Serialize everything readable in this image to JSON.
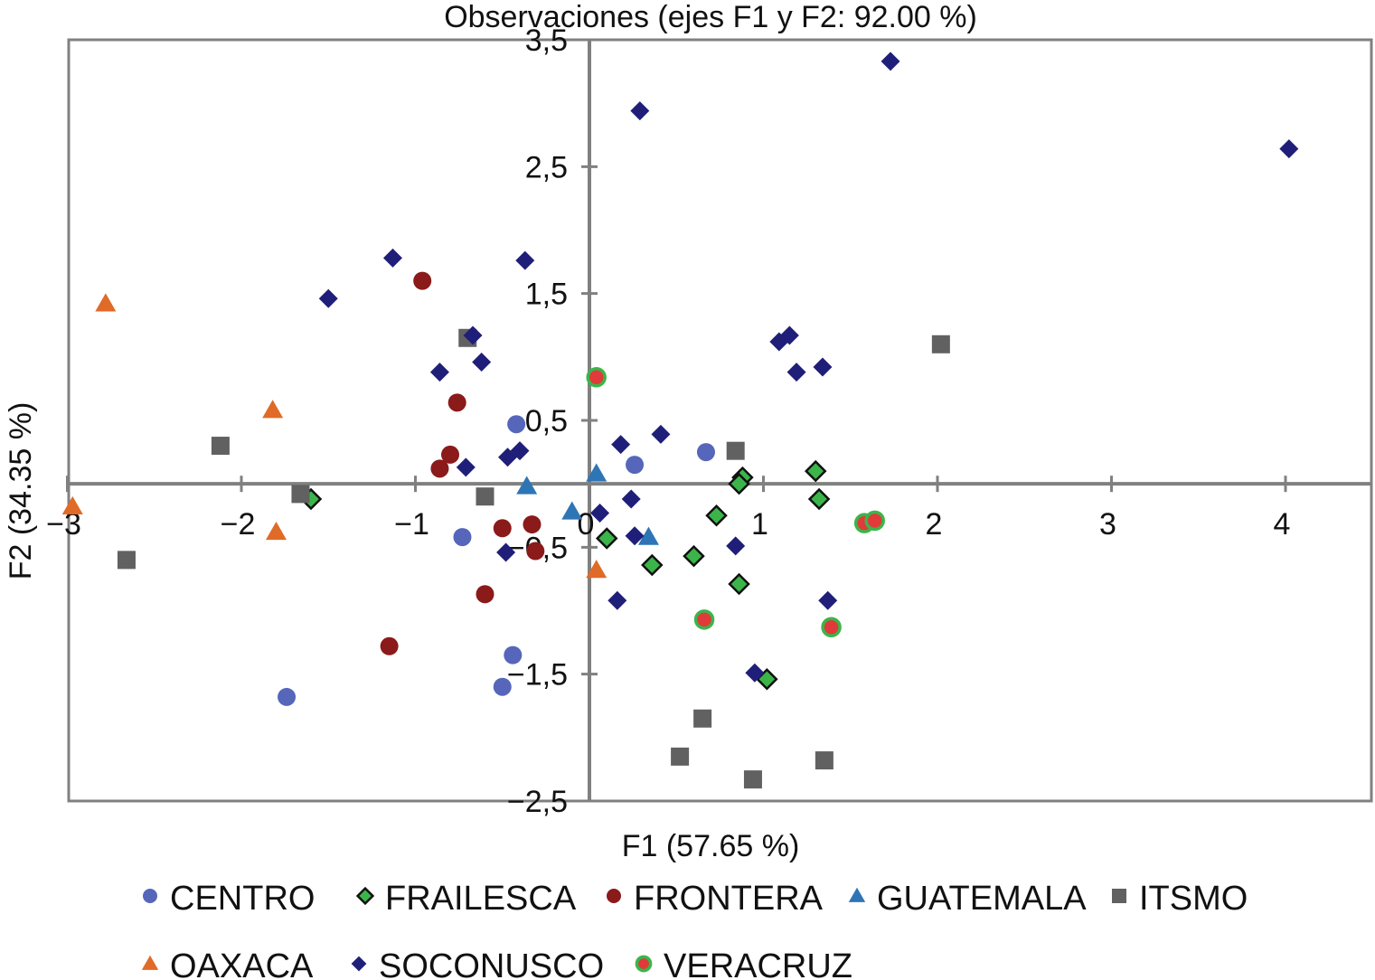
{
  "chart_data": {
    "type": "scatter",
    "title": "Observaciones (ejes F1 y F2: 92.00 %)",
    "xlabel": "F1 (57.65 %)",
    "ylabel": "F2 (34.35 %)",
    "xlim": [
      -3,
      4.5
    ],
    "ylim": [
      -2.5,
      3.5
    ],
    "x_ticks": [
      -3,
      -2,
      -1,
      0,
      1,
      2,
      3,
      4
    ],
    "x_tick_labels": [
      "−3",
      "−2",
      "−1",
      "0",
      "1",
      "2",
      "3",
      "4"
    ],
    "y_ticks": [
      3.5,
      2.5,
      1.5,
      0.5,
      -0.5,
      -1.5,
      -2.5
    ],
    "y_tick_labels": [
      "3,5",
      "2,5",
      "1,5",
      "0,5",
      "−0,5",
      "−1,5",
      "−2,5"
    ],
    "grid": false,
    "legend_position": "bottom",
    "series": [
      {
        "name": "CENTRO",
        "marker": "circle",
        "color": "#5566bb",
        "points": [
          [
            -0.42,
            0.47
          ],
          [
            0.26,
            0.15
          ],
          [
            0.67,
            0.25
          ],
          [
            -0.73,
            -0.42
          ],
          [
            -0.44,
            -1.35
          ],
          [
            -0.5,
            -1.6
          ],
          [
            -1.74,
            -1.68
          ]
        ]
      },
      {
        "name": "FRAILESCA",
        "marker": "diamond",
        "color": "#3bb54a",
        "edge_color": "#111111",
        "points": [
          [
            -1.6,
            -0.12
          ],
          [
            0.88,
            0.05
          ],
          [
            0.86,
            0.0
          ],
          [
            1.3,
            0.1
          ],
          [
            1.32,
            -0.12
          ],
          [
            0.73,
            -0.25
          ],
          [
            0.1,
            -0.43
          ],
          [
            0.36,
            -0.64
          ],
          [
            0.6,
            -0.57
          ],
          [
            0.86,
            -0.79
          ],
          [
            1.02,
            -1.54
          ]
        ]
      },
      {
        "name": "FRONTERA",
        "marker": "circle",
        "color": "#8b1a1a",
        "points": [
          [
            -0.96,
            1.6
          ],
          [
            -0.76,
            0.64
          ],
          [
            -0.8,
            0.23
          ],
          [
            -0.86,
            0.12
          ],
          [
            -0.5,
            -0.35
          ],
          [
            -0.33,
            -0.32
          ],
          [
            -0.31,
            -0.53
          ],
          [
            -0.6,
            -0.87
          ],
          [
            -1.15,
            -1.28
          ]
        ]
      },
      {
        "name": "GUATEMALA",
        "marker": "triangle",
        "color": "#2e75b6",
        "points": [
          [
            0.04,
            0.08
          ],
          [
            -0.36,
            -0.02
          ],
          [
            -0.1,
            -0.22
          ],
          [
            0.34,
            -0.42
          ]
        ]
      },
      {
        "name": "ITSMO",
        "marker": "square",
        "color": "#616161",
        "points": [
          [
            -0.7,
            1.15
          ],
          [
            -2.12,
            0.3
          ],
          [
            -1.66,
            -0.08
          ],
          [
            -0.6,
            -0.1
          ],
          [
            -2.66,
            -0.6
          ],
          [
            0.84,
            0.26
          ],
          [
            2.02,
            1.1
          ],
          [
            0.65,
            -1.85
          ],
          [
            0.52,
            -2.15
          ],
          [
            0.94,
            -2.33
          ],
          [
            1.35,
            -2.18
          ]
        ]
      },
      {
        "name": "OAXACA",
        "marker": "triangle",
        "color": "#e06a28",
        "points": [
          [
            -2.78,
            1.42
          ],
          [
            -1.82,
            0.58
          ],
          [
            -2.97,
            -0.18
          ],
          [
            -1.8,
            -0.38
          ],
          [
            0.04,
            -0.68
          ]
        ]
      },
      {
        "name": "SOCONUSCO",
        "marker": "diamond",
        "color": "#1f1f7a",
        "points": [
          [
            1.73,
            3.33
          ],
          [
            0.29,
            2.94
          ],
          [
            4.02,
            2.64
          ],
          [
            -1.13,
            1.78
          ],
          [
            -0.37,
            1.76
          ],
          [
            -1.5,
            1.46
          ],
          [
            -0.67,
            1.17
          ],
          [
            -0.62,
            0.96
          ],
          [
            -0.86,
            0.88
          ],
          [
            1.09,
            1.12
          ],
          [
            1.15,
            1.17
          ],
          [
            1.19,
            0.88
          ],
          [
            1.34,
            0.92
          ],
          [
            0.41,
            0.39
          ],
          [
            0.18,
            0.31
          ],
          [
            -0.4,
            0.26
          ],
          [
            -0.47,
            0.21
          ],
          [
            -0.71,
            0.13
          ],
          [
            0.06,
            -0.23
          ],
          [
            0.24,
            -0.12
          ],
          [
            0.26,
            -0.41
          ],
          [
            -0.48,
            -0.54
          ],
          [
            0.84,
            -0.49
          ],
          [
            0.16,
            -0.92
          ],
          [
            1.37,
            -0.92
          ],
          [
            0.95,
            -1.49
          ]
        ]
      },
      {
        "name": "VERACRUZ",
        "marker": "circle",
        "color": "#e03a3a",
        "edge_color": "#3bb54a",
        "points": [
          [
            0.04,
            0.84
          ],
          [
            1.58,
            -0.31
          ],
          [
            1.64,
            -0.29
          ],
          [
            0.66,
            -1.07
          ],
          [
            1.39,
            -1.13
          ]
        ]
      }
    ]
  }
}
